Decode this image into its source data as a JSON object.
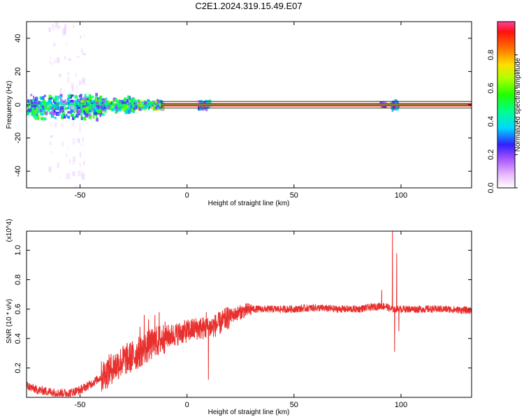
{
  "title": "C2E1.2024.319.15.49.E07",
  "colorbar": {
    "label": "Normalized spectral amplitude",
    "ticks": [
      0.0,
      0.2,
      0.4,
      0.6,
      0.8
    ],
    "tick_labels": [
      "0.0",
      "0.2",
      "0.4",
      "0.6",
      "0.8"
    ],
    "range": [
      0,
      1
    ]
  },
  "chart_data": [
    {
      "type": "heatmap",
      "xlabel": "Height of straight line (km)",
      "ylabel": "Frequency (Hz)",
      "xlim": [
        -75,
        133
      ],
      "ylim": [
        -50,
        50
      ],
      "xticks": [
        -50,
        0,
        50,
        100
      ],
      "xtick_labels": [
        "-50",
        "0",
        "50",
        "100"
      ],
      "yticks": [
        -40,
        -20,
        0,
        20,
        40
      ],
      "ytick_labels": [
        "-40",
        "-20",
        "0",
        "20",
        "40"
      ],
      "center_band_hz": [
        -1,
        1
      ],
      "band_outline_hz": [
        -2,
        2
      ],
      "clusters": [
        {
          "x0": -75,
          "x1": -40,
          "f0": -9,
          "f1": 7,
          "amp": 0.45
        },
        {
          "x0": -65,
          "x1": -48,
          "f0": -50,
          "f1": 50,
          "amp": 0.08
        },
        {
          "x0": -50,
          "x1": -25,
          "f0": -5,
          "f1": 5,
          "amp": 0.5
        },
        {
          "x0": -25,
          "x1": -12,
          "f0": -3,
          "f1": 3,
          "amp": 0.6
        },
        {
          "x0": 5,
          "x1": 10,
          "f0": -3,
          "f1": 3,
          "amp": 0.35
        },
        {
          "x0": 90,
          "x1": 92,
          "f0": -2,
          "f1": 2,
          "amp": 0.3
        },
        {
          "x0": 95,
          "x1": 98,
          "f0": -3,
          "f1": 3,
          "amp": 0.4
        }
      ]
    },
    {
      "type": "line",
      "xlabel": "Height of straight line (km)",
      "ylabel": "SNR (10 * v/v)",
      "y_scale_label": "(x10^4)",
      "xlim": [
        -75,
        133
      ],
      "ylim": [
        0,
        1.13
      ],
      "xticks": [
        -50,
        0,
        50,
        100
      ],
      "xtick_labels": [
        "-50",
        "0",
        "50",
        "100"
      ],
      "yticks": [
        0.2,
        0.4,
        0.6,
        0.8,
        1.0
      ],
      "ytick_labels": [
        "0.2",
        "0.4",
        "0.6",
        "0.8",
        "1.0"
      ],
      "series_color": "#e8302e",
      "envelope": {
        "x": [
          -75,
          -70,
          -65,
          -60,
          -55,
          -50,
          -45,
          -40,
          -35,
          -30,
          -25,
          -20,
          -15,
          -10,
          -5,
          0,
          5,
          10,
          15,
          20,
          25,
          30,
          35,
          40,
          50,
          60,
          70,
          80,
          90,
          93,
          95,
          97,
          98,
          100,
          110,
          120,
          133
        ],
        "y": [
          0.08,
          0.05,
          0.04,
          0.03,
          0.03,
          0.05,
          0.09,
          0.14,
          0.2,
          0.25,
          0.28,
          0.33,
          0.37,
          0.41,
          0.43,
          0.45,
          0.47,
          0.47,
          0.5,
          0.55,
          0.58,
          0.6,
          0.6,
          0.6,
          0.6,
          0.61,
          0.6,
          0.6,
          0.62,
          0.62,
          0.6,
          0.6,
          0.6,
          0.6,
          0.6,
          0.6,
          0.59
        ]
      },
      "spikes": [
        {
          "x": -22,
          "y": 0.48
        },
        {
          "x": -20,
          "y": 0.56
        },
        {
          "x": -18,
          "y": 0.53
        },
        {
          "x": -15,
          "y": 0.56
        },
        {
          "x": -13,
          "y": 0.58
        },
        {
          "x": 9,
          "y": 0.58
        },
        {
          "x": 10,
          "y": 0.12
        },
        {
          "x": 91,
          "y": 0.73
        },
        {
          "x": 96,
          "y": 1.13
        },
        {
          "x": 97,
          "y": 0.31
        },
        {
          "x": 98,
          "y": 0.98
        },
        {
          "x": 99,
          "y": 0.45
        }
      ]
    }
  ]
}
